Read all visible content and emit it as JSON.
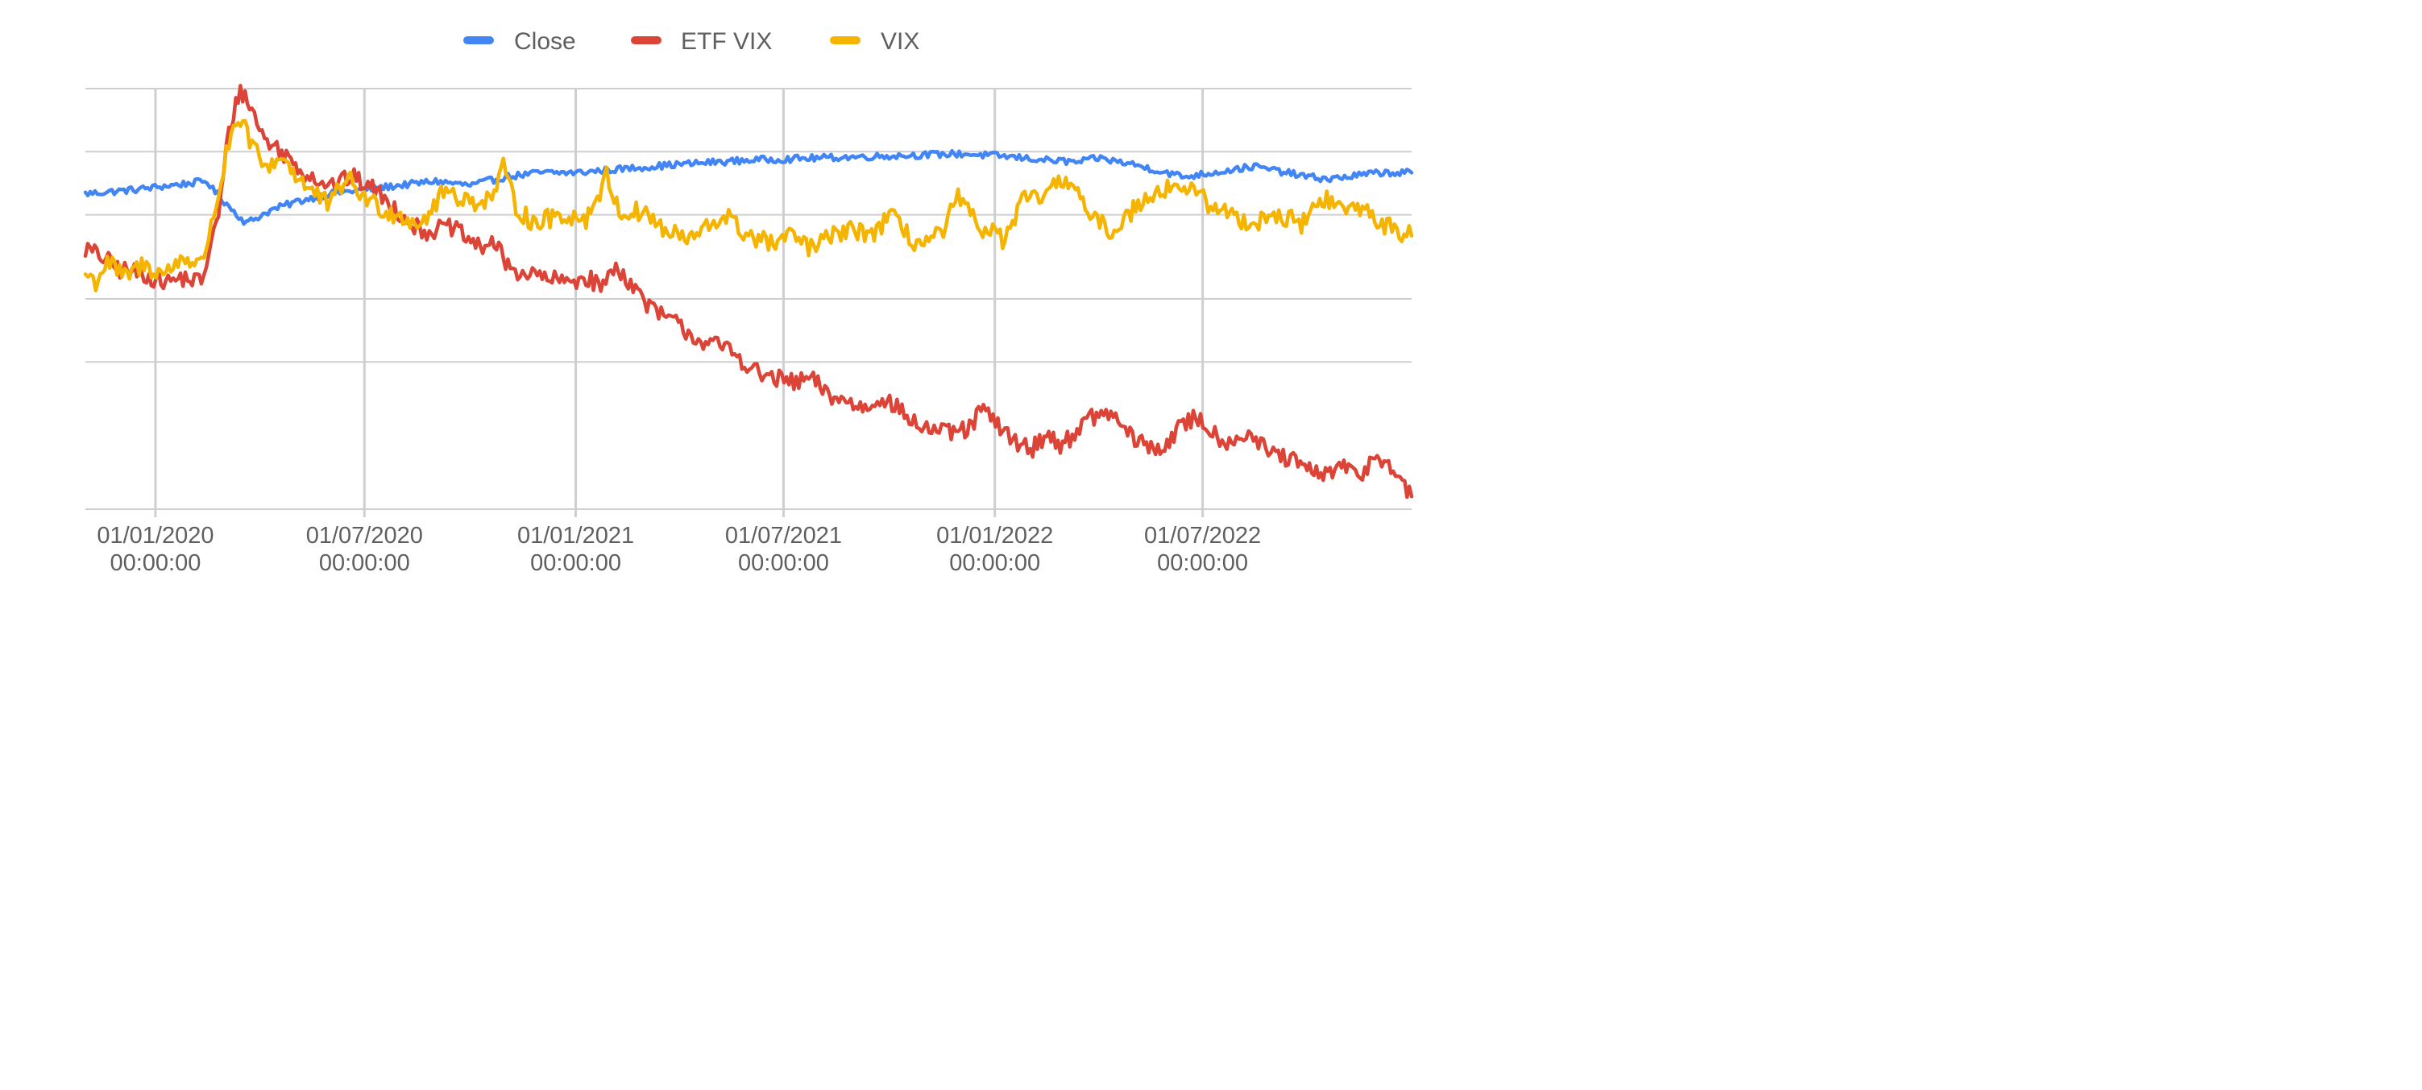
{
  "chart_data": {
    "type": "line",
    "title": "",
    "xlabel": "",
    "ylabel": "",
    "legend_position": "top",
    "grid": true,
    "x_tick_labels": [
      {
        "date": "2020-01-01",
        "line1": "01/01/2020",
        "line2": "00:00:00"
      },
      {
        "date": "2020-07-01",
        "line1": "01/07/2020",
        "line2": "00:00:00"
      },
      {
        "date": "2021-01-01",
        "line1": "01/01/2021",
        "line2": "00:00:00"
      },
      {
        "date": "2021-07-01",
        "line1": "01/07/2021",
        "line2": "00:00:00"
      },
      {
        "date": "2022-01-01",
        "line1": "01/01/2022",
        "line2": "00:00:00"
      },
      {
        "date": "2022-07-01",
        "line1": "01/07/2022",
        "line2": "00:00:00"
      }
    ],
    "xlim": [
      "2019-11-01",
      "2022-12-30"
    ],
    "ylim": [
      0,
      100
    ],
    "y_gridlines": [
      0,
      35,
      50,
      70,
      85,
      100
    ],
    "series": [
      {
        "name": "Close",
        "color": "#4285f4",
        "points": [
          [
            "2019-11-01",
            75
          ],
          [
            "2019-12-15",
            76
          ],
          [
            "2020-01-15",
            77
          ],
          [
            "2020-02-15",
            78
          ],
          [
            "2020-02-20",
            76
          ],
          [
            "2020-03-05",
            72
          ],
          [
            "2020-03-20",
            68
          ],
          [
            "2020-04-10",
            71
          ],
          [
            "2020-05-01",
            73
          ],
          [
            "2020-06-01",
            75
          ],
          [
            "2020-07-01",
            76
          ],
          [
            "2020-08-01",
            77
          ],
          [
            "2020-09-01",
            78
          ],
          [
            "2020-10-01",
            77
          ],
          [
            "2020-11-01",
            79
          ],
          [
            "2020-12-01",
            80
          ],
          [
            "2021-01-01",
            80
          ],
          [
            "2021-02-15",
            81
          ],
          [
            "2021-04-01",
            82
          ],
          [
            "2021-06-01",
            83
          ],
          [
            "2021-08-01",
            83.5
          ],
          [
            "2021-10-01",
            84
          ],
          [
            "2021-12-01",
            84.5
          ],
          [
            "2022-01-05",
            84
          ],
          [
            "2022-02-15",
            83
          ],
          [
            "2022-03-15",
            82.5
          ],
          [
            "2022-04-01",
            83.5
          ],
          [
            "2022-05-01",
            82
          ],
          [
            "2022-06-15",
            79
          ],
          [
            "2022-08-15",
            81.5
          ],
          [
            "2022-10-01",
            79
          ],
          [
            "2022-10-20",
            78.5
          ],
          [
            "2022-12-01",
            80
          ],
          [
            "2022-12-30",
            80
          ]
        ]
      },
      {
        "name": "ETF VIX",
        "color": "#db4437",
        "points": [
          [
            "2019-11-01",
            62
          ],
          [
            "2019-11-15",
            60
          ],
          [
            "2019-12-01",
            57
          ],
          [
            "2019-12-20",
            56
          ],
          [
            "2020-01-10",
            54
          ],
          [
            "2020-01-25",
            55
          ],
          [
            "2020-02-10",
            54
          ],
          [
            "2020-02-25",
            70
          ],
          [
            "2020-03-05",
            90
          ],
          [
            "2020-03-15",
            100
          ],
          [
            "2020-03-25",
            95
          ],
          [
            "2020-04-05",
            88
          ],
          [
            "2020-04-20",
            85
          ],
          [
            "2020-05-10",
            80
          ],
          [
            "2020-06-01",
            77
          ],
          [
            "2020-06-20",
            79
          ],
          [
            "2020-07-10",
            76
          ],
          [
            "2020-07-25",
            72
          ],
          [
            "2020-08-20",
            66
          ],
          [
            "2020-09-15",
            67
          ],
          [
            "2020-10-10",
            62
          ],
          [
            "2020-10-20",
            64
          ],
          [
            "2020-11-05",
            57
          ],
          [
            "2020-11-20",
            56
          ],
          [
            "2020-12-20",
            54
          ],
          [
            "2021-01-10",
            55
          ],
          [
            "2021-01-25",
            53
          ],
          [
            "2021-02-05",
            58
          ],
          [
            "2021-02-20",
            53
          ],
          [
            "2021-03-10",
            47
          ],
          [
            "2021-03-25",
            45
          ],
          [
            "2021-04-20",
            40
          ],
          [
            "2021-05-15",
            38
          ],
          [
            "2021-06-10",
            32
          ],
          [
            "2021-07-10",
            30
          ],
          [
            "2021-07-25",
            31
          ],
          [
            "2021-08-10",
            27
          ],
          [
            "2021-09-10",
            24
          ],
          [
            "2021-09-25",
            27
          ],
          [
            "2021-10-25",
            20
          ],
          [
            "2021-11-20",
            18
          ],
          [
            "2021-12-10",
            19
          ],
          [
            "2021-12-20",
            24
          ],
          [
            "2022-01-10",
            18
          ],
          [
            "2022-02-01",
            14
          ],
          [
            "2022-02-15",
            18
          ],
          [
            "2022-03-01",
            15
          ],
          [
            "2022-03-20",
            21
          ],
          [
            "2022-04-10",
            23
          ],
          [
            "2022-05-05",
            16
          ],
          [
            "2022-05-25",
            14
          ],
          [
            "2022-06-10",
            19
          ],
          [
            "2022-06-25",
            22
          ],
          [
            "2022-07-20",
            16
          ],
          [
            "2022-08-10",
            18
          ],
          [
            "2022-08-25",
            14
          ],
          [
            "2022-09-20",
            11
          ],
          [
            "2022-10-10",
            8
          ],
          [
            "2022-10-30",
            10
          ],
          [
            "2022-11-15",
            8
          ],
          [
            "2022-11-30",
            13
          ],
          [
            "2022-12-10",
            11
          ],
          [
            "2022-12-20",
            6
          ],
          [
            "2022-12-30",
            3
          ]
        ]
      },
      {
        "name": "VIX",
        "color": "#f4b400",
        "points": [
          [
            "2019-11-01",
            56
          ],
          [
            "2019-11-10",
            54
          ],
          [
            "2019-11-20",
            59
          ],
          [
            "2019-12-05",
            55
          ],
          [
            "2019-12-20",
            58
          ],
          [
            "2020-01-10",
            56
          ],
          [
            "2020-01-25",
            60
          ],
          [
            "2020-02-10",
            58
          ],
          [
            "2020-02-25",
            75
          ],
          [
            "2020-03-05",
            87
          ],
          [
            "2020-03-15",
            92
          ],
          [
            "2020-03-25",
            87
          ],
          [
            "2020-04-05",
            81
          ],
          [
            "2020-04-20",
            84
          ],
          [
            "2020-05-10",
            77
          ],
          [
            "2020-06-01",
            72
          ],
          [
            "2020-06-15",
            79
          ],
          [
            "2020-07-01",
            74
          ],
          [
            "2020-07-20",
            71
          ],
          [
            "2020-08-20",
            68
          ],
          [
            "2020-09-10",
            76
          ],
          [
            "2020-10-01",
            73
          ],
          [
            "2020-10-20",
            74
          ],
          [
            "2020-10-30",
            81
          ],
          [
            "2020-11-10",
            72
          ],
          [
            "2020-11-25",
            68
          ],
          [
            "2020-12-20",
            70
          ],
          [
            "2021-01-10",
            69
          ],
          [
            "2021-01-28",
            79
          ],
          [
            "2021-02-10",
            70
          ],
          [
            "2021-03-01",
            71
          ],
          [
            "2021-03-20",
            66
          ],
          [
            "2021-04-10",
            64
          ],
          [
            "2021-05-12",
            70
          ],
          [
            "2021-05-25",
            66
          ],
          [
            "2021-06-20",
            63
          ],
          [
            "2021-07-10",
            65
          ],
          [
            "2021-07-25",
            62
          ],
          [
            "2021-08-20",
            66
          ],
          [
            "2021-09-20",
            66
          ],
          [
            "2021-10-01",
            70
          ],
          [
            "2021-10-25",
            63
          ],
          [
            "2021-11-15",
            65
          ],
          [
            "2021-11-30",
            74
          ],
          [
            "2021-12-15",
            68
          ],
          [
            "2022-01-10",
            64
          ],
          [
            "2022-01-25",
            73
          ],
          [
            "2022-02-15",
            75
          ],
          [
            "2022-03-08",
            79
          ],
          [
            "2022-03-25",
            69
          ],
          [
            "2022-04-15",
            66
          ],
          [
            "2022-05-10",
            74
          ],
          [
            "2022-05-25",
            76
          ],
          [
            "2022-06-15",
            77
          ],
          [
            "2022-07-10",
            72
          ],
          [
            "2022-08-10",
            68
          ],
          [
            "2022-09-01",
            70
          ],
          [
            "2022-09-25",
            68
          ],
          [
            "2022-10-15",
            74
          ],
          [
            "2022-11-01",
            71
          ],
          [
            "2022-11-15",
            72
          ],
          [
            "2022-11-30",
            69
          ],
          [
            "2022-12-15",
            66
          ],
          [
            "2022-12-30",
            65
          ]
        ]
      }
    ]
  }
}
